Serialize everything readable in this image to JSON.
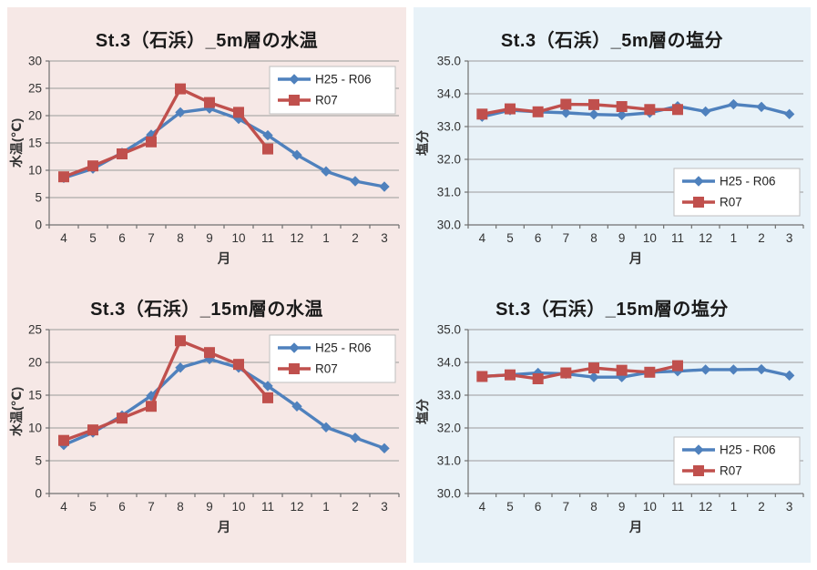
{
  "page": {
    "background": "#ffffff"
  },
  "panels": [
    {
      "id": "temperature",
      "background": "#f6e8e6"
    },
    {
      "id": "salinity",
      "background": "#e8f2f8"
    }
  ],
  "colors": {
    "series_blue": "#4F81BD",
    "series_red": "#C0504D",
    "gridline": "#9b9b9b",
    "axis": "#707070",
    "tick_text": "#333333",
    "title_text": "#1a1a1a",
    "legend_border": "#bfbfbf",
    "legend_background": "#ffffff"
  },
  "chart_data": [
    {
      "type": "line",
      "panel": "temperature",
      "title": "St.3（石浜）_5m層の水温",
      "xlabel": "月",
      "ylabel": "水温(℃)",
      "categories": [
        "4",
        "5",
        "6",
        "7",
        "8",
        "9",
        "10",
        "11",
        "12",
        "1",
        "2",
        "3"
      ],
      "ylim": [
        0,
        30
      ],
      "ystep": 5,
      "y_decimals": 0,
      "grid": true,
      "legend_position": "top-right",
      "series": [
        {
          "name": "H25 - R06",
          "color": "#4F81BD",
          "marker": "diamond",
          "values": [
            8.6,
            10.3,
            13.2,
            16.5,
            20.6,
            21.3,
            19.4,
            16.4,
            12.8,
            9.8,
            8.0,
            7.0
          ]
        },
        {
          "name": "R07",
          "color": "#C0504D",
          "marker": "square",
          "values": [
            8.8,
            10.8,
            13.0,
            15.2,
            24.9,
            22.4,
            20.6,
            13.9
          ]
        }
      ]
    },
    {
      "type": "line",
      "panel": "salinity",
      "title": "St.3（石浜）_5m層の塩分",
      "xlabel": "月",
      "ylabel": "塩分",
      "categories": [
        "4",
        "5",
        "6",
        "7",
        "8",
        "9",
        "10",
        "11",
        "12",
        "1",
        "2",
        "3"
      ],
      "ylim": [
        30.0,
        35.0
      ],
      "ystep": 1,
      "y_decimals": 1,
      "grid": true,
      "legend_position": "bottom-right",
      "series": [
        {
          "name": "H25 - R06",
          "color": "#4F81BD",
          "marker": "diamond",
          "values": [
            33.3,
            33.5,
            33.45,
            33.42,
            33.37,
            33.35,
            33.42,
            33.62,
            33.46,
            33.68,
            33.6,
            33.38
          ]
        },
        {
          "name": "R07",
          "color": "#C0504D",
          "marker": "square",
          "values": [
            33.38,
            33.54,
            33.45,
            33.68,
            33.67,
            33.61,
            33.52,
            33.52
          ]
        }
      ]
    },
    {
      "type": "line",
      "panel": "temperature",
      "title": "St.3（石浜）_15m層の水温",
      "xlabel": "月",
      "ylabel": "水温(℃)",
      "categories": [
        "4",
        "5",
        "6",
        "7",
        "8",
        "9",
        "10",
        "11",
        "12",
        "1",
        "2",
        "3"
      ],
      "ylim": [
        0,
        25
      ],
      "ystep": 5,
      "y_decimals": 0,
      "grid": true,
      "legend_position": "top-right",
      "series": [
        {
          "name": "H25 - R06",
          "color": "#4F81BD",
          "marker": "diamond",
          "values": [
            7.4,
            9.3,
            11.9,
            14.9,
            19.2,
            20.5,
            19.2,
            16.4,
            13.3,
            10.1,
            8.5,
            6.9
          ]
        },
        {
          "name": "R07",
          "color": "#C0504D",
          "marker": "square",
          "values": [
            8.1,
            9.7,
            11.5,
            13.3,
            23.3,
            21.5,
            19.7,
            14.6
          ]
        }
      ]
    },
    {
      "type": "line",
      "panel": "salinity",
      "title": "St.3（石浜）_15m層の塩分",
      "xlabel": "月",
      "ylabel": "塩分",
      "categories": [
        "4",
        "5",
        "6",
        "7",
        "8",
        "9",
        "10",
        "11",
        "12",
        "1",
        "2",
        "3"
      ],
      "ylim": [
        30.0,
        35.0
      ],
      "ystep": 1,
      "y_decimals": 1,
      "grid": true,
      "legend_position": "bottom-right",
      "series": [
        {
          "name": "H25 - R06",
          "color": "#4F81BD",
          "marker": "diamond",
          "values": [
            33.57,
            33.62,
            33.68,
            33.65,
            33.55,
            33.55,
            33.7,
            33.73,
            33.78,
            33.78,
            33.79,
            33.6
          ]
        },
        {
          "name": "R07",
          "color": "#C0504D",
          "marker": "square",
          "values": [
            33.57,
            33.62,
            33.5,
            33.68,
            33.83,
            33.76,
            33.7,
            33.9
          ]
        }
      ]
    }
  ]
}
